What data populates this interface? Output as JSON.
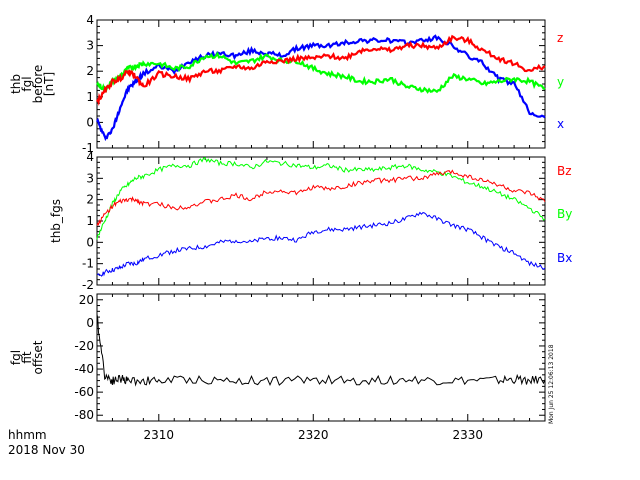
{
  "colors": {
    "x": "#0000ff",
    "y": "#00ff00",
    "z": "#ff0000",
    "black": "#000000"
  },
  "time_axis": {
    "tick_labels": [
      "2310",
      "2320",
      "2330"
    ],
    "time_label": "hhmm",
    "date_label": "2018 Nov 30"
  },
  "timestamp": "Mon Jun 25 12:06:13 2018",
  "chart_data": [
    {
      "type": "line",
      "ylabel": [
        "thb",
        "fgl",
        "before",
        "[nT]"
      ],
      "ylim": [
        -1,
        4
      ],
      "yticks": [
        -1,
        0,
        1,
        2,
        3,
        4
      ],
      "xlim": [
        2306,
        2335
      ],
      "x": [
        2306,
        2306.5,
        2307,
        2307.5,
        2308,
        2308.5,
        2309,
        2310,
        2311,
        2312,
        2313,
        2314,
        2315,
        2316,
        2317,
        2318,
        2319,
        2320,
        2321,
        2322,
        2323,
        2324,
        2325,
        2326,
        2327,
        2328,
        2329,
        2330,
        2331,
        2332,
        2333,
        2334,
        2335
      ],
      "series": [
        {
          "name": "x",
          "color": "#0000ff",
          "values": [
            0.1,
            -0.6,
            -0.3,
            0.6,
            1.3,
            1.6,
            1.9,
            2.2,
            2.0,
            2.4,
            2.6,
            2.7,
            2.6,
            2.8,
            2.7,
            2.6,
            2.9,
            3.0,
            3.0,
            3.1,
            3.2,
            3.2,
            3.2,
            3.1,
            3.2,
            3.3,
            3.0,
            2.6,
            2.3,
            1.7,
            1.5,
            0.4,
            0.2
          ]
        },
        {
          "name": "y",
          "color": "#00ff00",
          "values": [
            1.5,
            1.3,
            1.6,
            1.8,
            2.1,
            2.2,
            2.3,
            2.3,
            2.1,
            2.2,
            2.6,
            2.6,
            2.3,
            2.4,
            2.6,
            2.4,
            2.4,
            2.1,
            1.9,
            1.8,
            1.6,
            1.6,
            1.7,
            1.4,
            1.3,
            1.2,
            1.8,
            1.7,
            1.5,
            1.6,
            1.7,
            1.6,
            1.3
          ]
        },
        {
          "name": "z",
          "color": "#ff0000",
          "values": [
            0.8,
            1.2,
            1.6,
            1.7,
            2.0,
            1.8,
            1.4,
            1.9,
            1.8,
            1.7,
            2.0,
            2.0,
            2.2,
            2.1,
            2.4,
            2.4,
            2.5,
            2.5,
            2.6,
            2.5,
            2.8,
            2.9,
            2.8,
            3.0,
            3.0,
            2.9,
            3.3,
            3.2,
            2.8,
            2.5,
            2.3,
            2.0,
            2.2
          ]
        }
      ]
    },
    {
      "type": "line",
      "ylabel": [
        "thb_fgs"
      ],
      "ylim": [
        -2,
        4
      ],
      "yticks": [
        -2,
        -1,
        0,
        1,
        2,
        3,
        4
      ],
      "xlim": [
        2306,
        2335
      ],
      "x": [
        2306,
        2306.5,
        2307,
        2307.5,
        2308,
        2308.5,
        2309,
        2310,
        2311,
        2312,
        2313,
        2314,
        2315,
        2316,
        2317,
        2318,
        2319,
        2320,
        2321,
        2322,
        2323,
        2324,
        2325,
        2326,
        2327,
        2328,
        2329,
        2330,
        2331,
        2332,
        2333,
        2334,
        2335
      ],
      "series": [
        {
          "name": "Bx",
          "color": "#0000ff",
          "values": [
            -1.6,
            -1.4,
            -1.3,
            -1.2,
            -1.0,
            -1.0,
            -0.8,
            -0.6,
            -0.4,
            -0.3,
            -0.2,
            0.0,
            0.1,
            0.0,
            0.2,
            0.2,
            0.1,
            0.5,
            0.6,
            0.6,
            0.7,
            0.8,
            0.9,
            1.1,
            1.4,
            1.1,
            0.8,
            0.6,
            0.2,
            -0.2,
            -0.5,
            -1.0,
            -1.2
          ]
        },
        {
          "name": "By",
          "color": "#00ff00",
          "values": [
            0.2,
            1.0,
            1.8,
            2.4,
            2.7,
            3.0,
            3.1,
            3.4,
            3.6,
            3.6,
            3.9,
            3.7,
            3.7,
            3.5,
            3.8,
            3.7,
            3.6,
            3.5,
            3.6,
            3.4,
            3.4,
            3.4,
            3.5,
            3.6,
            3.4,
            3.3,
            3.1,
            2.8,
            2.6,
            2.3,
            2.0,
            1.6,
            1.1
          ]
        },
        {
          "name": "Bz",
          "color": "#ff0000",
          "values": [
            0.8,
            1.3,
            1.7,
            1.9,
            2.0,
            2.0,
            1.8,
            1.8,
            1.6,
            1.7,
            1.9,
            2.0,
            2.2,
            2.0,
            2.4,
            2.4,
            2.3,
            2.6,
            2.5,
            2.6,
            2.8,
            2.9,
            2.9,
            3.0,
            3.0,
            3.2,
            3.3,
            3.1,
            2.9,
            2.7,
            2.4,
            2.3,
            1.9
          ]
        }
      ]
    },
    {
      "type": "line",
      "ylabel": [
        "fgl",
        "fit",
        "offset"
      ],
      "ylim": [
        -85,
        25
      ],
      "yticks": [
        -80,
        -60,
        -40,
        -20,
        0,
        20
      ],
      "xlim": [
        2306,
        2335
      ],
      "x": [
        2306,
        2306.5,
        2307,
        2307.5,
        2308,
        2309,
        2310,
        2312,
        2314,
        2316,
        2318,
        2320,
        2322,
        2324,
        2326,
        2328,
        2330,
        2332,
        2333,
        2334,
        2335
      ],
      "series": [
        {
          "name": "offset",
          "color": "#000000",
          "values": [
            5,
            -45,
            -50,
            -48,
            -50,
            -50,
            -50,
            -49,
            -50,
            -50,
            -50,
            -49,
            -50,
            -50,
            -49,
            -50,
            -50,
            -50,
            -49,
            -50,
            -49
          ]
        }
      ]
    }
  ]
}
